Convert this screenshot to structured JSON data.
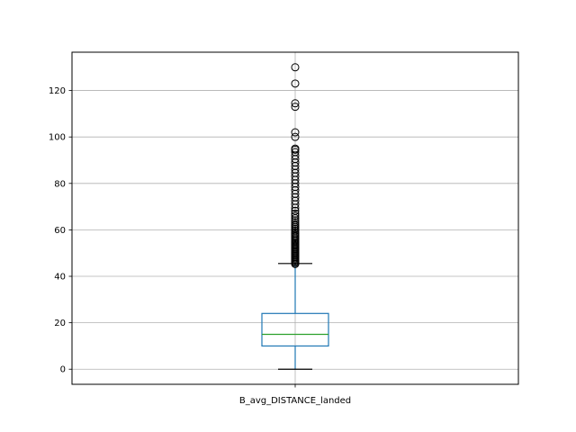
{
  "chart_data": {
    "type": "box",
    "title": "",
    "xlabel": "",
    "ylabel": "",
    "categories": [
      "B_avg_DISTANCE_landed"
    ],
    "ylim": [
      -6.5,
      136.5
    ],
    "yticks": [
      0,
      20,
      40,
      60,
      80,
      100,
      120
    ],
    "grid": true,
    "box": {
      "whisker_low": 0,
      "q1": 10,
      "median": 15,
      "q3": 24,
      "whisker_high": 45.5
    },
    "outliers": [
      45.3,
      45.8,
      46.3,
      46.8,
      47.3,
      47.8,
      48.3,
      48.8,
      49.3,
      49.8,
      50.3,
      50.8,
      51.3,
      51.8,
      52.3,
      52.8,
      53.3,
      53.8,
      54.3,
      54.8,
      55.4,
      56,
      56.6,
      57.2,
      57.8,
      58.4,
      59,
      59.7,
      60.4,
      61.1,
      61.8,
      62.5,
      63.3,
      64.1,
      65,
      66,
      67,
      68.2,
      69.5,
      71,
      72.5,
      74,
      75.5,
      77,
      78.5,
      80,
      81.5,
      83,
      84.5,
      86,
      87.5,
      89,
      90.5,
      92,
      93.5,
      94.5,
      95,
      100,
      102,
      113,
      114.5,
      123,
      130
    ],
    "colors": {
      "box": "#1f77b4",
      "median": "#2ca02c",
      "whisker_cap": "#000000",
      "outlier": "#000000",
      "grid": "#b0b0b0"
    }
  }
}
